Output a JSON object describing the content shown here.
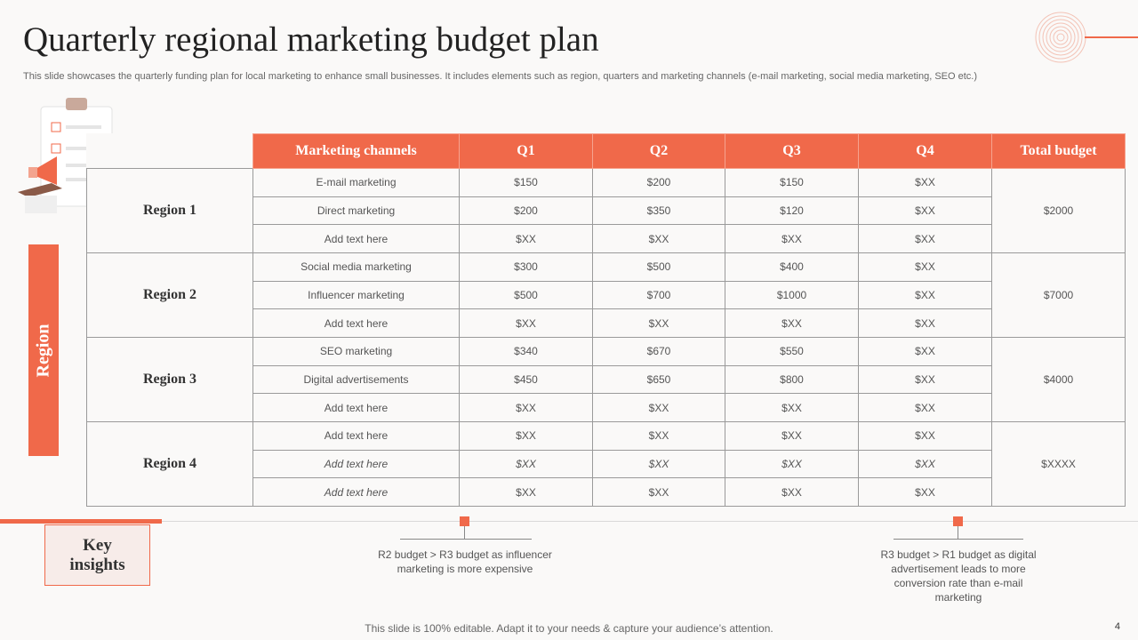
{
  "slide": {
    "title": "Quarterly regional marketing budget plan",
    "subtitle": "This slide showcases the quarterly funding plan for local marketing to enhance small businesses. It includes elements such as region, quarters and marketing channels (e-mail marketing, social media marketing, SEO etc.)",
    "side_label": "Region",
    "footer": "This slide is 100% editable. Adapt it to your needs & capture your audience’s attention.",
    "page_number": "4"
  },
  "table": {
    "headers": [
      "Marketing channels",
      "Q1",
      "Q2",
      "Q3",
      "Q4",
      "Total budget"
    ],
    "regions": [
      {
        "name": "Region 1",
        "total": "$2000",
        "rows": [
          {
            "channel": "E-mail marketing",
            "q1": "$150",
            "q2": "$200",
            "q3": "$150",
            "q4": "$XX"
          },
          {
            "channel": "Direct marketing",
            "q1": "$200",
            "q2": "$350",
            "q3": "$120",
            "q4": "$XX"
          },
          {
            "channel": "Add text here",
            "q1": "$XX",
            "q2": "$XX",
            "q3": "$XX",
            "q4": "$XX"
          }
        ]
      },
      {
        "name": "Region 2",
        "total": "$7000",
        "rows": [
          {
            "channel": "Social media marketing",
            "q1": "$300",
            "q2": "$500",
            "q3": "$400",
            "q4": "$XX"
          },
          {
            "channel": "Influencer marketing",
            "q1": "$500",
            "q2": "$700",
            "q3": "$1000",
            "q4": "$XX"
          },
          {
            "channel": "Add text here",
            "q1": "$XX",
            "q2": "$XX",
            "q3": "$XX",
            "q4": "$XX"
          }
        ]
      },
      {
        "name": "Region 3",
        "total": "$4000",
        "rows": [
          {
            "channel": "SEO marketing",
            "q1": "$340",
            "q2": "$670",
            "q3": "$550",
            "q4": "$XX"
          },
          {
            "channel": "Digital advertisements",
            "q1": "$450",
            "q2": "$650",
            "q3": "$800",
            "q4": "$XX"
          },
          {
            "channel": "Add text here",
            "q1": "$XX",
            "q2": "$XX",
            "q3": "$XX",
            "q4": "$XX"
          }
        ]
      },
      {
        "name": "Region 4",
        "total": "$XXXX",
        "rows": [
          {
            "channel": "Add text here",
            "q1": "$XX",
            "q2": "$XX",
            "q3": "$XX",
            "q4": "$XX"
          },
          {
            "channel": "Add text here",
            "q1": "$XX",
            "q2": "$XX",
            "q3": "$XX",
            "q4": "$XX",
            "italic": true
          },
          {
            "channel": "Add text here",
            "q1": "$XX",
            "q2": "$XX",
            "q3": "$XX",
            "q4": "$XX",
            "italic_channel": true
          }
        ]
      }
    ]
  },
  "insights": {
    "label_line1": "Key",
    "label_line2": "insights",
    "left": "R2 budget > R3 budget as influencer marketing is more expensive",
    "right": "R3 budget > R1 budget as digital advertisement leads to more conversion rate than e-mail marketing"
  },
  "colors": {
    "accent": "#f0694a",
    "key_box_bg": "#f7ece9",
    "background": "#faf9f8"
  },
  "icons": [
    "clipboard-icon",
    "megaphone-icon",
    "calculator-icon",
    "target-circles-icon"
  ]
}
